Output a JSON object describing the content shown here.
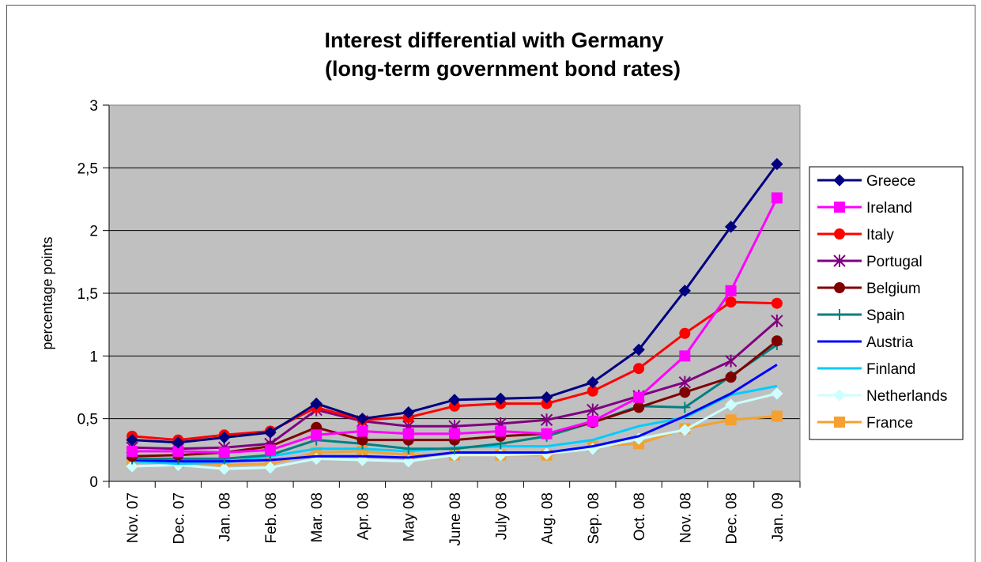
{
  "chart_data": {
    "type": "line",
    "title": "Interest differential with Germany",
    "subtitle": "(long-term government bond rates)",
    "ylabel": "percentage points",
    "xlabel": "",
    "ylim": [
      0,
      3
    ],
    "yticks": [
      "0",
      "0,5",
      "1",
      "1,5",
      "2",
      "2,5",
      "3"
    ],
    "ytick_values": [
      0,
      0.5,
      1,
      1.5,
      2,
      2.5,
      3
    ],
    "categories": [
      "Nov. 07",
      "Dec. 07",
      "Jan. 08",
      "Feb. 08",
      "Mar. 08",
      "Apr. 08",
      "May 08",
      "June 08",
      "July 08",
      "Aug. 08",
      "Sep. 08",
      "Oct. 08",
      "Nov. 08",
      "Dec. 08",
      "Jan. 09"
    ],
    "grid": "horizontal",
    "plot_background": "#c0c0c0",
    "legend_position": "right",
    "series": [
      {
        "name": "Greece",
        "color": "#000080",
        "marker": "diamond",
        "values": [
          0.33,
          0.31,
          0.35,
          0.39,
          0.62,
          0.5,
          0.55,
          0.65,
          0.66,
          0.67,
          0.79,
          1.05,
          1.52,
          2.03,
          2.53
        ]
      },
      {
        "name": "Ireland",
        "color": "#ff00ff",
        "marker": "square",
        "values": [
          0.24,
          0.24,
          0.23,
          0.25,
          0.37,
          0.4,
          0.38,
          0.38,
          0.4,
          0.38,
          0.48,
          0.67,
          1.0,
          1.52,
          2.26
        ]
      },
      {
        "name": "Italy",
        "color": "#ff0000",
        "marker": "circle",
        "values": [
          0.36,
          0.33,
          0.37,
          0.4,
          0.59,
          0.49,
          0.51,
          0.6,
          0.62,
          0.62,
          0.72,
          0.9,
          1.18,
          1.43,
          1.42
        ]
      },
      {
        "name": "Portugal",
        "color": "#800080",
        "marker": "star",
        "values": [
          0.27,
          0.26,
          0.27,
          0.3,
          0.57,
          0.48,
          0.44,
          0.44,
          0.46,
          0.49,
          0.57,
          0.68,
          0.79,
          0.96,
          1.28
        ]
      },
      {
        "name": "Belgium",
        "color": "#800000",
        "marker": "circle",
        "values": [
          0.2,
          0.21,
          0.23,
          0.28,
          0.43,
          0.33,
          0.33,
          0.33,
          0.36,
          0.38,
          0.47,
          0.59,
          0.71,
          0.83,
          1.12
        ]
      },
      {
        "name": "Spain",
        "color": "#008080",
        "marker": "plus",
        "values": [
          0.18,
          0.18,
          0.18,
          0.21,
          0.33,
          0.3,
          0.26,
          0.26,
          0.3,
          0.36,
          0.47,
          0.6,
          0.59,
          0.84,
          1.09
        ]
      },
      {
        "name": "Austria",
        "color": "#0000ff",
        "marker": "none",
        "values": [
          0.17,
          0.16,
          0.16,
          0.17,
          0.2,
          0.2,
          0.19,
          0.23,
          0.23,
          0.23,
          0.28,
          0.36,
          0.52,
          0.7,
          0.93
        ]
      },
      {
        "name": "Finland",
        "color": "#00ccff",
        "marker": "none",
        "values": [
          0.16,
          0.14,
          0.15,
          0.2,
          0.26,
          0.26,
          0.24,
          0.27,
          0.28,
          0.28,
          0.33,
          0.44,
          0.51,
          0.69,
          0.76
        ]
      },
      {
        "name": "Netherlands",
        "color": "#ccffff",
        "marker": "diamond",
        "values": [
          0.12,
          0.13,
          0.1,
          0.11,
          0.18,
          0.17,
          0.16,
          0.21,
          0.21,
          0.22,
          0.26,
          0.34,
          0.41,
          0.61,
          0.7
        ]
      },
      {
        "name": "France",
        "color": "#f5a030",
        "marker": "square",
        "values": [
          0.15,
          0.15,
          0.13,
          0.14,
          0.23,
          0.24,
          0.21,
          0.21,
          0.21,
          0.21,
          0.28,
          0.3,
          0.42,
          0.49,
          0.52
        ]
      }
    ]
  }
}
